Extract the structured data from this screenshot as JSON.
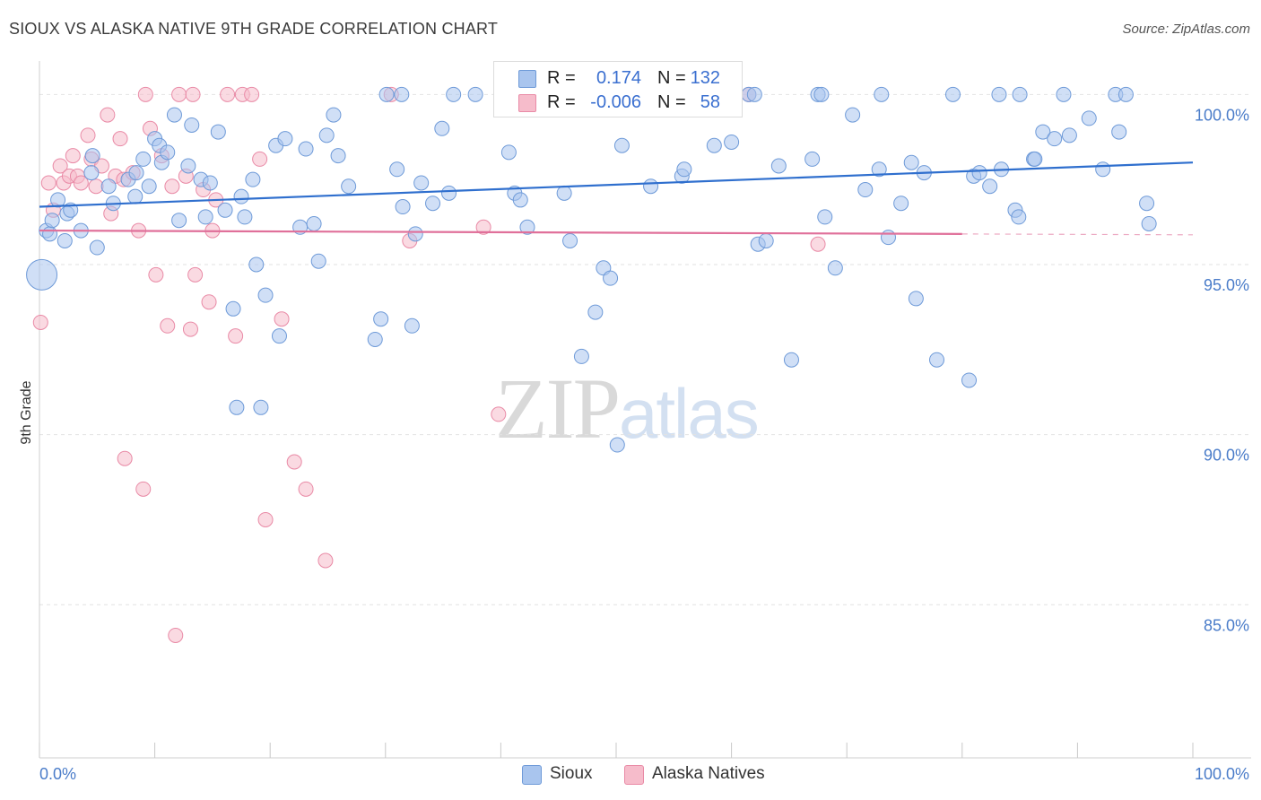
{
  "title": "SIOUX VS ALASKA NATIVE 9TH GRADE CORRELATION CHART",
  "source": "Source: ZipAtlas.com",
  "watermark": {
    "part1": "ZIP",
    "part2": "atlas"
  },
  "legend": {
    "rows": [
      {
        "r_label": "R =",
        "r_value": "0.174",
        "n_label": "N =",
        "n_value": "132",
        "color": "#a9c5ee"
      },
      {
        "r_label": "R =",
        "r_value": "-0.006",
        "n_label": "N =",
        "n_value": "58",
        "color": "#f6bccb"
      }
    ]
  },
  "bottom_legend": {
    "series1": "Sioux",
    "series2": "Alaska Natives"
  },
  "colors": {
    "sioux_fill": "#a9c5ee",
    "sioux_stroke": "#6e9ad8",
    "sioux_line": "#2f6fce",
    "alaska_fill": "#f6bccb",
    "alaska_stroke": "#e98aa6",
    "alaska_line": "#e0709a",
    "tick_label": "#4a7cc9",
    "grid": "#e2e2e2"
  },
  "chart_data": {
    "type": "scatter",
    "title": "SIOUX VS ALASKA NATIVE 9TH GRADE CORRELATION CHART",
    "xlabel": "",
    "ylabel": "9th Grade",
    "xlim": [
      0,
      100
    ],
    "ylim": [
      80.5,
      100.8
    ],
    "x_tick_labels": [
      "0.0%",
      "100.0%"
    ],
    "y_ticks": [
      100,
      95,
      90,
      85
    ],
    "y_tick_labels": [
      "100.0%",
      "95.0%",
      "90.0%",
      "85.0%"
    ],
    "grid": true,
    "legend_position": "top-center",
    "series": [
      {
        "name": "Sioux",
        "trend": {
          "x": [
            0,
            100
          ],
          "y": [
            96.7,
            98.0
          ]
        },
        "points": [
          [
            0.6,
            96.0
          ],
          [
            0.9,
            95.9
          ],
          [
            1.1,
            96.3
          ],
          [
            1.6,
            96.9
          ],
          [
            2.2,
            95.7
          ],
          [
            2.4,
            96.5
          ],
          [
            2.7,
            96.6
          ],
          [
            3.6,
            96.0
          ],
          [
            4.5,
            97.7
          ],
          [
            4.6,
            98.2
          ],
          [
            5.0,
            95.5
          ],
          [
            6.0,
            97.3
          ],
          [
            6.4,
            96.8
          ],
          [
            7.7,
            97.5
          ],
          [
            8.3,
            97.0
          ],
          [
            8.4,
            97.7
          ],
          [
            9.0,
            98.1
          ],
          [
            9.5,
            97.3
          ],
          [
            10.0,
            98.7
          ],
          [
            10.4,
            98.5
          ],
          [
            10.6,
            98.0
          ],
          [
            11.1,
            98.3
          ],
          [
            11.7,
            99.4
          ],
          [
            12.1,
            96.3
          ],
          [
            12.9,
            97.9
          ],
          [
            13.2,
            99.1
          ],
          [
            14.0,
            97.5
          ],
          [
            14.4,
            96.4
          ],
          [
            14.8,
            97.4
          ],
          [
            15.5,
            98.9
          ],
          [
            16.1,
            96.6
          ],
          [
            16.8,
            93.7
          ],
          [
            17.1,
            90.8
          ],
          [
            17.5,
            97.0
          ],
          [
            17.8,
            96.4
          ],
          [
            18.5,
            97.5
          ],
          [
            18.8,
            95.0
          ],
          [
            19.2,
            90.8
          ],
          [
            19.6,
            94.1
          ],
          [
            20.5,
            98.5
          ],
          [
            20.8,
            92.9
          ],
          [
            21.3,
            98.7
          ],
          [
            22.6,
            96.1
          ],
          [
            23.1,
            98.4
          ],
          [
            23.8,
            96.2
          ],
          [
            24.2,
            95.1
          ],
          [
            24.9,
            98.8
          ],
          [
            25.5,
            99.4
          ],
          [
            25.9,
            98.2
          ],
          [
            26.8,
            97.3
          ],
          [
            29.1,
            92.8
          ],
          [
            29.6,
            93.4
          ],
          [
            30.1,
            100.0
          ],
          [
            31.0,
            97.8
          ],
          [
            31.4,
            100.0
          ],
          [
            31.5,
            96.7
          ],
          [
            32.3,
            93.2
          ],
          [
            32.6,
            95.9
          ],
          [
            33.1,
            97.4
          ],
          [
            34.1,
            96.8
          ],
          [
            34.9,
            99.0
          ],
          [
            35.5,
            97.1
          ],
          [
            35.9,
            100.0
          ],
          [
            40.7,
            98.3
          ],
          [
            41.2,
            97.1
          ],
          [
            41.7,
            96.9
          ],
          [
            42.3,
            96.1
          ],
          [
            45.5,
            97.1
          ],
          [
            46.0,
            95.7
          ],
          [
            47.0,
            92.3
          ],
          [
            48.2,
            93.6
          ],
          [
            48.9,
            94.9
          ],
          [
            49.0,
            100.0
          ],
          [
            49.5,
            94.6
          ],
          [
            50.1,
            89.7
          ],
          [
            50.5,
            98.5
          ],
          [
            51.5,
            100.0
          ],
          [
            53.0,
            97.3
          ],
          [
            55.7,
            97.6
          ],
          [
            55.9,
            97.8
          ],
          [
            58.2,
            100.0
          ],
          [
            58.5,
            98.5
          ],
          [
            60.0,
            98.6
          ],
          [
            61.5,
            100.0
          ],
          [
            62.3,
            95.6
          ],
          [
            63.0,
            95.7
          ],
          [
            64.1,
            97.9
          ],
          [
            65.2,
            92.2
          ],
          [
            67.0,
            98.1
          ],
          [
            67.5,
            100.0
          ],
          [
            68.1,
            96.4
          ],
          [
            69.0,
            94.9
          ],
          [
            70.5,
            99.4
          ],
          [
            71.6,
            97.2
          ],
          [
            72.8,
            97.8
          ],
          [
            73.6,
            95.8
          ],
          [
            74.7,
            96.8
          ],
          [
            75.6,
            98.0
          ],
          [
            76.0,
            94.0
          ],
          [
            76.7,
            97.7
          ],
          [
            77.8,
            92.2
          ],
          [
            79.2,
            100.0
          ],
          [
            80.6,
            91.6
          ],
          [
            81.0,
            97.6
          ],
          [
            81.5,
            97.7
          ],
          [
            82.4,
            97.3
          ],
          [
            83.2,
            100.0
          ],
          [
            83.4,
            97.8
          ],
          [
            84.6,
            96.6
          ],
          [
            84.9,
            96.4
          ],
          [
            86.2,
            98.1
          ],
          [
            87.0,
            98.9
          ],
          [
            88.0,
            98.7
          ],
          [
            89.3,
            98.8
          ],
          [
            91.0,
            99.3
          ],
          [
            92.2,
            97.8
          ],
          [
            93.3,
            100.0
          ],
          [
            93.6,
            98.9
          ],
          [
            94.2,
            100.0
          ],
          [
            96.0,
            96.8
          ],
          [
            96.2,
            96.2
          ],
          [
            0.2,
            94.7
          ],
          [
            37.8,
            100.0
          ],
          [
            40.2,
            100.0
          ],
          [
            44.0,
            100.0
          ],
          [
            55.0,
            100.0
          ],
          [
            62.0,
            100.0
          ],
          [
            67.8,
            100.0
          ],
          [
            73.0,
            100.0
          ],
          [
            85.0,
            100.0
          ],
          [
            86.3,
            98.1
          ],
          [
            88.8,
            100.0
          ]
        ]
      },
      {
        "name": "Alaska Natives",
        "trend": {
          "x": [
            0,
            80
          ],
          "y": [
            96.0,
            95.9
          ]
        },
        "points": [
          [
            0.1,
            93.3
          ],
          [
            0.8,
            97.4
          ],
          [
            1.2,
            96.6
          ],
          [
            1.8,
            97.9
          ],
          [
            2.1,
            97.4
          ],
          [
            2.6,
            97.6
          ],
          [
            2.9,
            98.2
          ],
          [
            3.3,
            97.6
          ],
          [
            3.6,
            97.4
          ],
          [
            4.2,
            98.8
          ],
          [
            4.5,
            98.1
          ],
          [
            4.9,
            97.3
          ],
          [
            5.4,
            97.9
          ],
          [
            5.9,
            99.4
          ],
          [
            6.2,
            96.5
          ],
          [
            6.6,
            97.6
          ],
          [
            7.0,
            98.7
          ],
          [
            7.3,
            97.5
          ],
          [
            7.4,
            89.3
          ],
          [
            8.1,
            97.7
          ],
          [
            8.6,
            96.0
          ],
          [
            9.0,
            88.4
          ],
          [
            9.2,
            100.0
          ],
          [
            9.6,
            99.0
          ],
          [
            10.1,
            94.7
          ],
          [
            10.6,
            98.2
          ],
          [
            11.1,
            93.2
          ],
          [
            11.5,
            97.3
          ],
          [
            11.8,
            84.1
          ],
          [
            12.1,
            100.0
          ],
          [
            12.7,
            97.6
          ],
          [
            13.1,
            93.1
          ],
          [
            13.3,
            100.0
          ],
          [
            13.5,
            94.7
          ],
          [
            14.2,
            97.2
          ],
          [
            14.7,
            93.9
          ],
          [
            15.0,
            96.0
          ],
          [
            15.3,
            96.9
          ],
          [
            16.3,
            100.0
          ],
          [
            17.0,
            92.9
          ],
          [
            17.6,
            100.0
          ],
          [
            18.4,
            100.0
          ],
          [
            19.1,
            98.1
          ],
          [
            19.6,
            87.5
          ],
          [
            21.0,
            93.4
          ],
          [
            22.1,
            89.2
          ],
          [
            23.1,
            88.4
          ],
          [
            24.8,
            86.3
          ],
          [
            30.5,
            100.0
          ],
          [
            32.1,
            95.7
          ],
          [
            38.5,
            96.1
          ],
          [
            39.8,
            90.6
          ],
          [
            41.2,
            100.0
          ],
          [
            44.8,
            100.0
          ],
          [
            45.8,
            100.0
          ],
          [
            61.5,
            100.0
          ],
          [
            67.5,
            95.6
          ],
          [
            50.5,
            100.0
          ]
        ]
      }
    ]
  }
}
